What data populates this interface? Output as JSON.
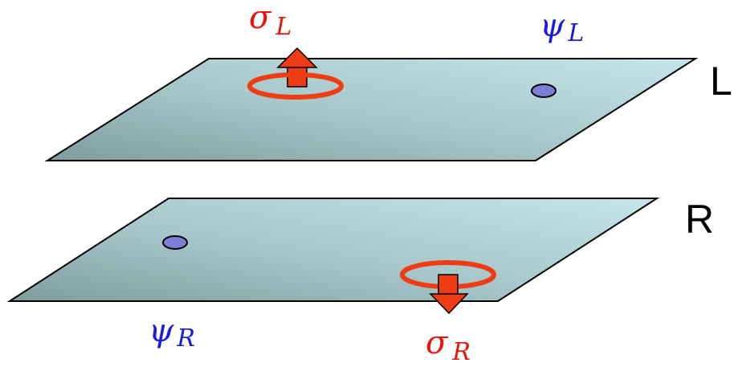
{
  "planes": [
    {
      "label": "L",
      "spin": {
        "symbol": "σ",
        "subscript": "L"
      },
      "particle": {
        "symbol": "ψ",
        "subscript": "L"
      }
    },
    {
      "label": "R",
      "spin": {
        "symbol": "σ",
        "subscript": "R"
      },
      "particle": {
        "symbol": "ψ",
        "subscript": "R"
      }
    }
  ]
}
